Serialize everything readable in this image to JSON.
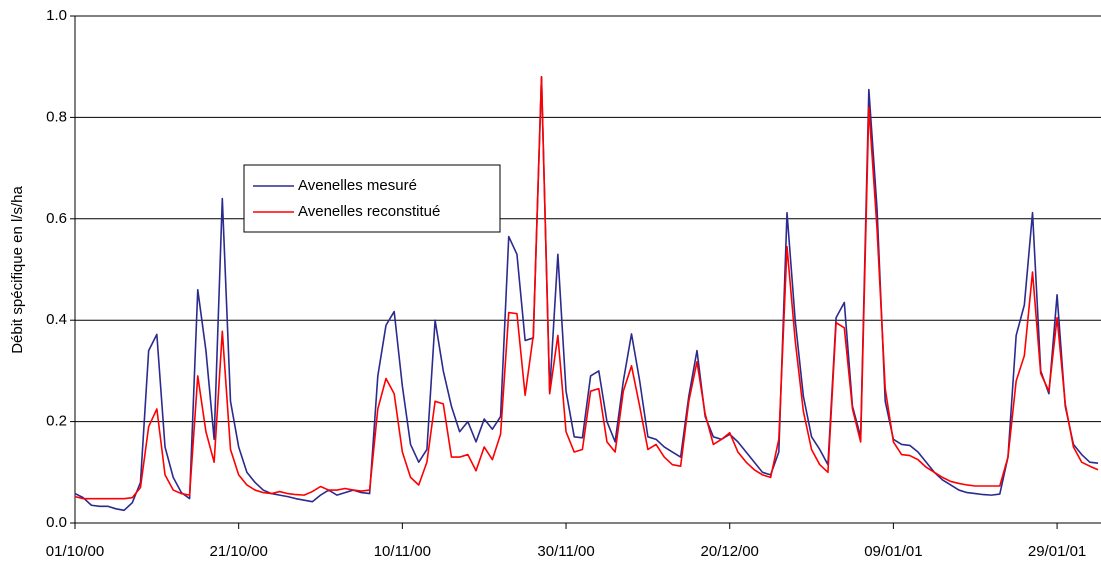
{
  "chart_data": {
    "type": "line",
    "y_label": "Débit spécifique en l/s/ha",
    "x": [
      "01/10/00",
      "02/10/00",
      "03/10/00",
      "04/10/00",
      "05/10/00",
      "06/10/00",
      "07/10/00",
      "08/10/00",
      "09/10/00",
      "10/10/00",
      "11/10/00",
      "12/10/00",
      "13/10/00",
      "14/10/00",
      "15/10/00",
      "16/10/00",
      "17/10/00",
      "18/10/00",
      "19/10/00",
      "20/10/00",
      "21/10/00",
      "22/10/00",
      "23/10/00",
      "24/10/00",
      "25/10/00",
      "26/10/00",
      "27/10/00",
      "28/10/00",
      "29/10/00",
      "30/10/00",
      "31/10/00",
      "01/11/00",
      "02/11/00",
      "03/11/00",
      "04/11/00",
      "05/11/00",
      "06/11/00",
      "07/11/00",
      "08/11/00",
      "09/11/00",
      "10/11/00",
      "11/11/00",
      "12/11/00",
      "13/11/00",
      "14/11/00",
      "15/11/00",
      "16/11/00",
      "17/11/00",
      "18/11/00",
      "19/11/00",
      "20/11/00",
      "21/11/00",
      "22/11/00",
      "23/11/00",
      "24/11/00",
      "25/11/00",
      "26/11/00",
      "27/11/00",
      "28/11/00",
      "29/11/00",
      "30/11/00",
      "01/12/00",
      "02/12/00",
      "03/12/00",
      "04/12/00",
      "05/12/00",
      "06/12/00",
      "07/12/00",
      "08/12/00",
      "09/12/00",
      "10/12/00",
      "11/12/00",
      "12/12/00",
      "13/12/00",
      "14/12/00",
      "15/12/00",
      "16/12/00",
      "17/12/00",
      "18/12/00",
      "19/12/00",
      "20/12/00",
      "21/12/00",
      "22/12/00",
      "23/12/00",
      "24/12/00",
      "25/12/00",
      "26/12/00",
      "27/12/00",
      "28/12/00",
      "29/12/00",
      "30/12/00",
      "31/12/00",
      "01/01/01",
      "02/01/01",
      "03/01/01",
      "04/01/01",
      "05/01/01",
      "06/01/01",
      "07/01/01",
      "08/01/01",
      "09/01/01",
      "10/01/01",
      "11/01/01",
      "12/01/01",
      "13/01/01",
      "14/01/01",
      "15/01/01",
      "16/01/01",
      "17/01/01",
      "18/01/01",
      "19/01/01",
      "20/01/01",
      "21/01/01",
      "22/01/01",
      "23/01/01",
      "24/01/01",
      "25/01/01",
      "26/01/01",
      "27/01/01",
      "28/01/01",
      "29/01/01",
      "30/01/01",
      "31/01/01",
      "01/02/01",
      "02/02/01",
      "03/02/01"
    ],
    "series": [
      {
        "name": "Avenelles mesuré",
        "color": "#2b2b8f",
        "values": [
          0.058,
          0.05,
          0.035,
          0.033,
          0.033,
          0.028,
          0.025,
          0.04,
          0.08,
          0.34,
          0.372,
          0.15,
          0.09,
          0.06,
          0.048,
          0.46,
          0.34,
          0.165,
          0.64,
          0.24,
          0.15,
          0.1,
          0.08,
          0.065,
          0.058,
          0.055,
          0.052,
          0.048,
          0.045,
          0.042,
          0.055,
          0.065,
          0.055,
          0.06,
          0.065,
          0.06,
          0.058,
          0.29,
          0.39,
          0.417,
          0.27,
          0.155,
          0.12,
          0.145,
          0.4,
          0.3,
          0.23,
          0.18,
          0.2,
          0.16,
          0.205,
          0.185,
          0.21,
          0.565,
          0.53,
          0.36,
          0.365,
          0.88,
          0.26,
          0.53,
          0.26,
          0.17,
          0.168,
          0.29,
          0.3,
          0.2,
          0.16,
          0.28,
          0.373,
          0.28,
          0.17,
          0.165,
          0.15,
          0.14,
          0.13,
          0.25,
          0.34,
          0.21,
          0.17,
          0.165,
          0.175,
          0.16,
          0.14,
          0.12,
          0.1,
          0.095,
          0.14,
          0.612,
          0.4,
          0.25,
          0.17,
          0.145,
          0.115,
          0.405,
          0.435,
          0.23,
          0.17,
          0.855,
          0.62,
          0.24,
          0.165,
          0.155,
          0.153,
          0.14,
          0.12,
          0.1,
          0.085,
          0.075,
          0.065,
          0.06,
          0.058,
          0.056,
          0.055,
          0.057,
          0.13,
          0.37,
          0.43,
          0.612,
          0.3,
          0.255,
          0.45,
          0.23,
          0.155,
          0.135,
          0.12,
          0.118
        ]
      },
      {
        "name": "Avenelles reconstitué",
        "color": "#ff0000",
        "values": [
          0.052,
          0.048,
          0.048,
          0.048,
          0.048,
          0.048,
          0.048,
          0.05,
          0.07,
          0.19,
          0.225,
          0.095,
          0.065,
          0.058,
          0.055,
          0.29,
          0.18,
          0.12,
          0.378,
          0.145,
          0.095,
          0.075,
          0.065,
          0.06,
          0.058,
          0.062,
          0.058,
          0.056,
          0.055,
          0.062,
          0.072,
          0.065,
          0.065,
          0.068,
          0.065,
          0.063,
          0.065,
          0.225,
          0.285,
          0.255,
          0.14,
          0.09,
          0.075,
          0.12,
          0.24,
          0.235,
          0.13,
          0.13,
          0.135,
          0.103,
          0.15,
          0.125,
          0.175,
          0.415,
          0.413,
          0.252,
          0.37,
          0.88,
          0.255,
          0.37,
          0.18,
          0.14,
          0.145,
          0.26,
          0.265,
          0.16,
          0.14,
          0.26,
          0.31,
          0.23,
          0.145,
          0.155,
          0.13,
          0.115,
          0.112,
          0.24,
          0.318,
          0.215,
          0.155,
          0.165,
          0.178,
          0.14,
          0.12,
          0.105,
          0.095,
          0.09,
          0.165,
          0.545,
          0.36,
          0.22,
          0.145,
          0.115,
          0.1,
          0.395,
          0.385,
          0.225,
          0.16,
          0.82,
          0.58,
          0.265,
          0.16,
          0.135,
          0.133,
          0.125,
          0.11,
          0.1,
          0.09,
          0.082,
          0.078,
          0.075,
          0.073,
          0.073,
          0.073,
          0.073,
          0.13,
          0.28,
          0.33,
          0.495,
          0.295,
          0.26,
          0.405,
          0.235,
          0.15,
          0.12,
          0.112,
          0.105
        ]
      }
    ],
    "xlim": [
      "01/10/00",
      "03/02/01"
    ],
    "xticks": [
      "01/10/00",
      "21/10/00",
      "10/11/00",
      "30/11/00",
      "20/12/00",
      "09/01/01",
      "29/01/01"
    ],
    "ylim": [
      0,
      1
    ],
    "yticks": [
      {
        "value": 0,
        "label": "0.0"
      },
      {
        "value": 0.2,
        "label": "0.2"
      },
      {
        "value": 0.4,
        "label": "0.4"
      },
      {
        "value": 0.6,
        "label": "0.6"
      },
      {
        "value": 0.8,
        "label": "0.8"
      },
      {
        "value": 1,
        "label": "1.0"
      }
    ],
    "grid": true
  }
}
